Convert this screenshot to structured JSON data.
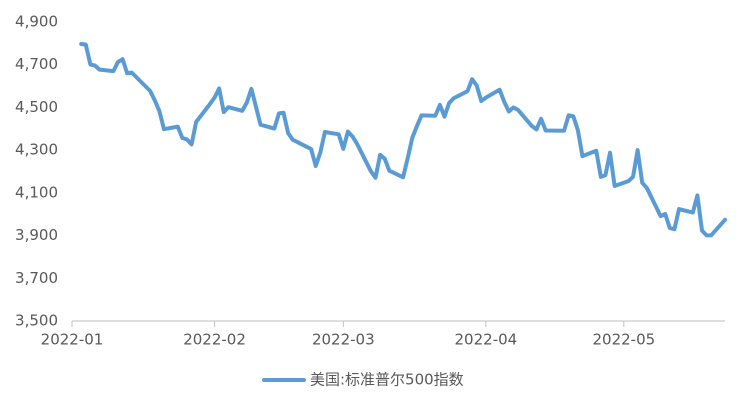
{
  "chart_data": {
    "type": "line",
    "x": [
      2,
      3,
      4,
      5,
      6,
      9,
      10,
      11,
      12,
      13,
      17,
      18,
      19,
      20,
      23,
      24,
      25,
      26,
      27,
      30,
      31,
      32,
      33,
      34,
      37,
      38,
      39,
      40,
      41,
      44,
      45,
      46,
      47,
      48,
      52,
      53,
      54,
      55,
      58,
      59,
      60,
      61,
      62,
      65,
      66,
      67,
      68,
      69,
      72,
      73,
      74,
      75,
      76,
      79,
      80,
      81,
      82,
      83,
      86,
      87,
      88,
      89,
      90,
      93,
      94,
      95,
      96,
      97,
      100,
      101,
      102,
      103,
      107,
      108,
      109,
      110,
      111,
      114,
      115,
      116,
      117,
      118,
      121,
      122,
      123,
      124,
      125,
      128,
      129,
      130,
      131,
      132,
      135,
      136,
      137,
      138,
      139,
      142
    ],
    "series": [
      {
        "name": "美国:标准普尔500指数",
        "color": "#5b9bd5",
        "values": [
          4797,
          4794,
          4701,
          4696,
          4677,
          4670,
          4713,
          4726,
          4660,
          4663,
          4577,
          4533,
          4483,
          4398,
          4410,
          4357,
          4350,
          4327,
          4432,
          4516,
          4546,
          4589,
          4478,
          4501,
          4484,
          4522,
          4587,
          4504,
          4419,
          4401,
          4472,
          4475,
          4380,
          4349,
          4305,
          4226,
          4289,
          4385,
          4374,
          4306,
          4387,
          4364,
          4329,
          4201,
          4171,
          4278,
          4260,
          4204,
          4173,
          4263,
          4358,
          4412,
          4463,
          4461,
          4512,
          4457,
          4520,
          4543,
          4576,
          4632,
          4603,
          4530,
          4546,
          4583,
          4526,
          4481,
          4500,
          4488,
          4413,
          4397,
          4447,
          4392,
          4391,
          4463,
          4459,
          4394,
          4272,
          4297,
          4175,
          4183,
          4288,
          4132,
          4155,
          4175,
          4300,
          4147,
          4123,
          3991,
          4001,
          3935,
          3930,
          4024,
          4008,
          4088,
          3923,
          3901,
          3901,
          3974
        ]
      }
    ],
    "xlim": [
      0,
      142
    ],
    "xticks": [
      {
        "value": 0,
        "label": "2022-01"
      },
      {
        "value": 31,
        "label": "2022-02"
      },
      {
        "value": 59,
        "label": "2022-03"
      },
      {
        "value": 90,
        "label": "2022-04"
      },
      {
        "value": 120,
        "label": "2022-05"
      }
    ],
    "ylim": [
      3500,
      4900
    ],
    "yticks": [
      {
        "value": 3500,
        "label": "3,500"
      },
      {
        "value": 3700,
        "label": "3,700"
      },
      {
        "value": 3900,
        "label": "3,900"
      },
      {
        "value": 4100,
        "label": "4,100"
      },
      {
        "value": 4300,
        "label": "4,300"
      },
      {
        "value": 4500,
        "label": "4,500"
      },
      {
        "value": 4700,
        "label": "4,700"
      },
      {
        "value": 4900,
        "label": "4,900"
      }
    ],
    "grid": false,
    "legend": "bottom"
  }
}
